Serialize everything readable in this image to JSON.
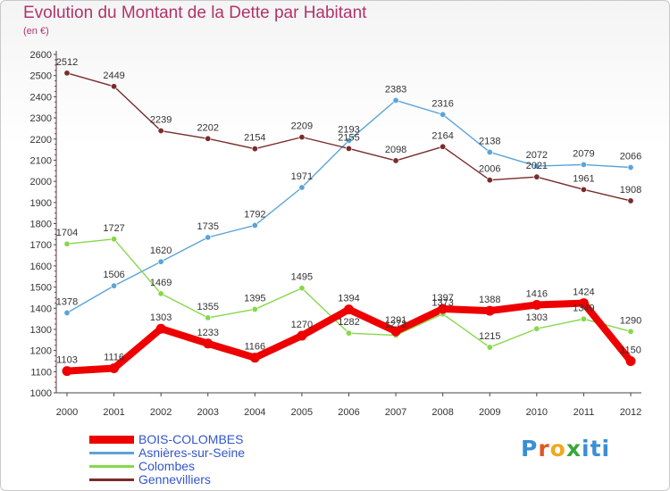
{
  "header": {
    "title": "Evolution du Montant de la Dette par Habitant",
    "subtitle": "(en €)"
  },
  "logo": {
    "text": "Proxiti",
    "letter_colors": [
      "#3a8fd4",
      "#e25822",
      "#f0a81d",
      "#38a838",
      "#3a8fd4",
      "#3a8fd4",
      "#3a8fd4"
    ]
  },
  "chart_data": {
    "type": "line",
    "x": [
      2000,
      2001,
      2002,
      2003,
      2004,
      2005,
      2006,
      2007,
      2008,
      2009,
      2010,
      2011,
      2012
    ],
    "ylim": [
      1000,
      2600
    ],
    "yticks": [
      1000,
      1100,
      1200,
      1300,
      1400,
      1500,
      1600,
      1700,
      1800,
      1900,
      2000,
      2100,
      2200,
      2300,
      2400,
      2500,
      2600
    ],
    "grid": false,
    "legend_position": "bottom-left",
    "series": [
      {
        "name": "BOIS-COLOMBES",
        "color": "#ee0000",
        "emphasis": true,
        "values": [
          1103,
          1116,
          1303,
          1233,
          1166,
          1270,
          1394,
          1291,
          1397,
          1388,
          1416,
          1424,
          1150
        ]
      },
      {
        "name": "Asnières-sur-Seine",
        "color": "#5ba4d8",
        "values": [
          1378,
          1506,
          1620,
          1735,
          1792,
          1971,
          2193,
          2383,
          2316,
          2138,
          2072,
          2079,
          2066
        ]
      },
      {
        "name": "Colombes",
        "color": "#86d84a",
        "values": [
          1704,
          1727,
          1469,
          1355,
          1395,
          1495,
          1282,
          1272,
          1373,
          1215,
          1303,
          1349,
          1290
        ]
      },
      {
        "name": "Gennevilliers",
        "color": "#7a2b2b",
        "values": [
          2512,
          2449,
          2239,
          2202,
          2154,
          2209,
          2155,
          2098,
          2164,
          2006,
          2021,
          1961,
          1908
        ]
      }
    ]
  }
}
